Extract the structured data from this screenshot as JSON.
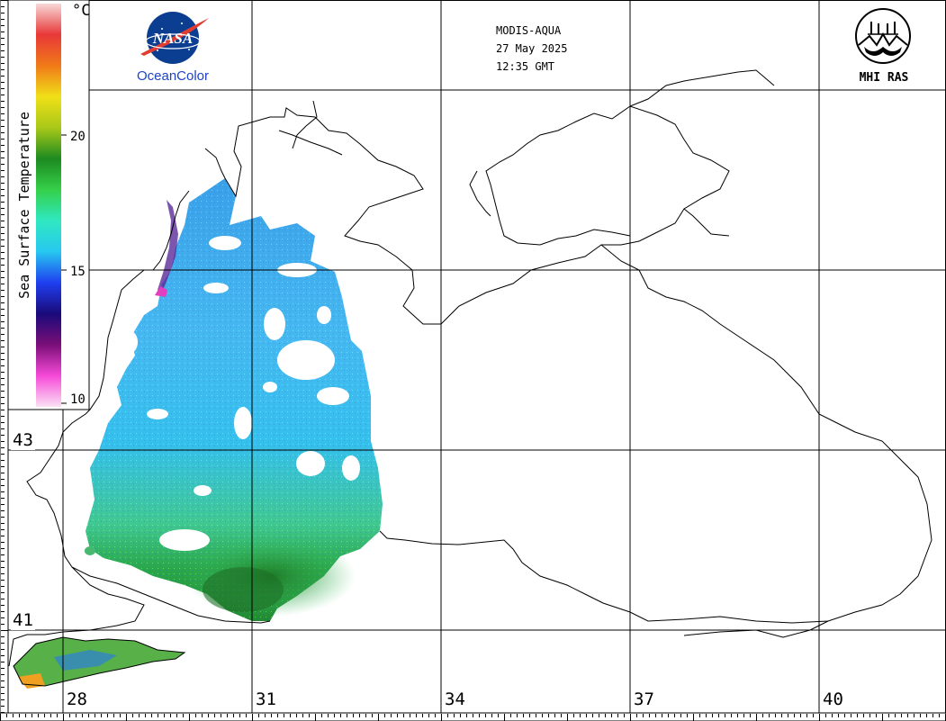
{
  "header": {
    "sensor": "MODIS-AQUA",
    "date": "27 May 2025",
    "time": "12:35 GMT"
  },
  "logos": {
    "nasa_text": "NASA",
    "oceancolor_text": "OceanColor",
    "mhi_text": "MHI RAS"
  },
  "colorbar": {
    "title": "Sea Surface Temperature",
    "unit": "°C",
    "min": 10,
    "max": 25,
    "ticks": [
      "20",
      "15",
      "10"
    ],
    "colors": [
      "#fbe0f4",
      "#f64ad8",
      "#7a0e78",
      "#1a0a7a",
      "#1f3ff0",
      "#27c8f0",
      "#2fe8c0",
      "#35d04a",
      "#1d8a20",
      "#a8c818",
      "#f0e018",
      "#f07a18",
      "#e83838",
      "#f8d8d8"
    ]
  },
  "axes": {
    "latitudes": [
      "43",
      "41"
    ],
    "longitudes": [
      "28",
      "31",
      "34",
      "37",
      "40"
    ]
  },
  "colors": {
    "land_outline": "#000000",
    "grid": "#000000",
    "nasa_blue": "#0b3d91",
    "nasa_red": "#e03c31"
  }
}
